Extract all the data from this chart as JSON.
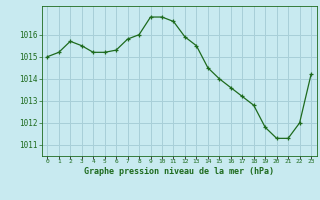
{
  "x": [
    0,
    1,
    2,
    3,
    4,
    5,
    6,
    7,
    8,
    9,
    10,
    11,
    12,
    13,
    14,
    15,
    16,
    17,
    18,
    19,
    20,
    21,
    22,
    23
  ],
  "y": [
    1015.0,
    1015.2,
    1015.7,
    1015.5,
    1015.2,
    1015.2,
    1015.3,
    1015.8,
    1016.0,
    1016.8,
    1016.8,
    1016.6,
    1015.9,
    1015.5,
    1014.5,
    1014.0,
    1013.6,
    1013.2,
    1012.8,
    1011.8,
    1011.3,
    1011.3,
    1012.0,
    1014.2
  ],
  "line_color": "#1e6b1e",
  "marker": "+",
  "bg_color": "#c8eaf0",
  "grid_color": "#a8cfd8",
  "title": "Graphe pression niveau de la mer (hPa)",
  "xlabel_ticks": [
    "0",
    "1",
    "2",
    "3",
    "4",
    "5",
    "6",
    "7",
    "8",
    "9",
    "10",
    "11",
    "12",
    "13",
    "14",
    "15",
    "16",
    "17",
    "18",
    "19",
    "20",
    "21",
    "22",
    "23"
  ],
  "yticks": [
    1011,
    1012,
    1013,
    1014,
    1015,
    1016
  ],
  "ylim": [
    1010.5,
    1017.3
  ],
  "xlim": [
    -0.5,
    23.5
  ]
}
